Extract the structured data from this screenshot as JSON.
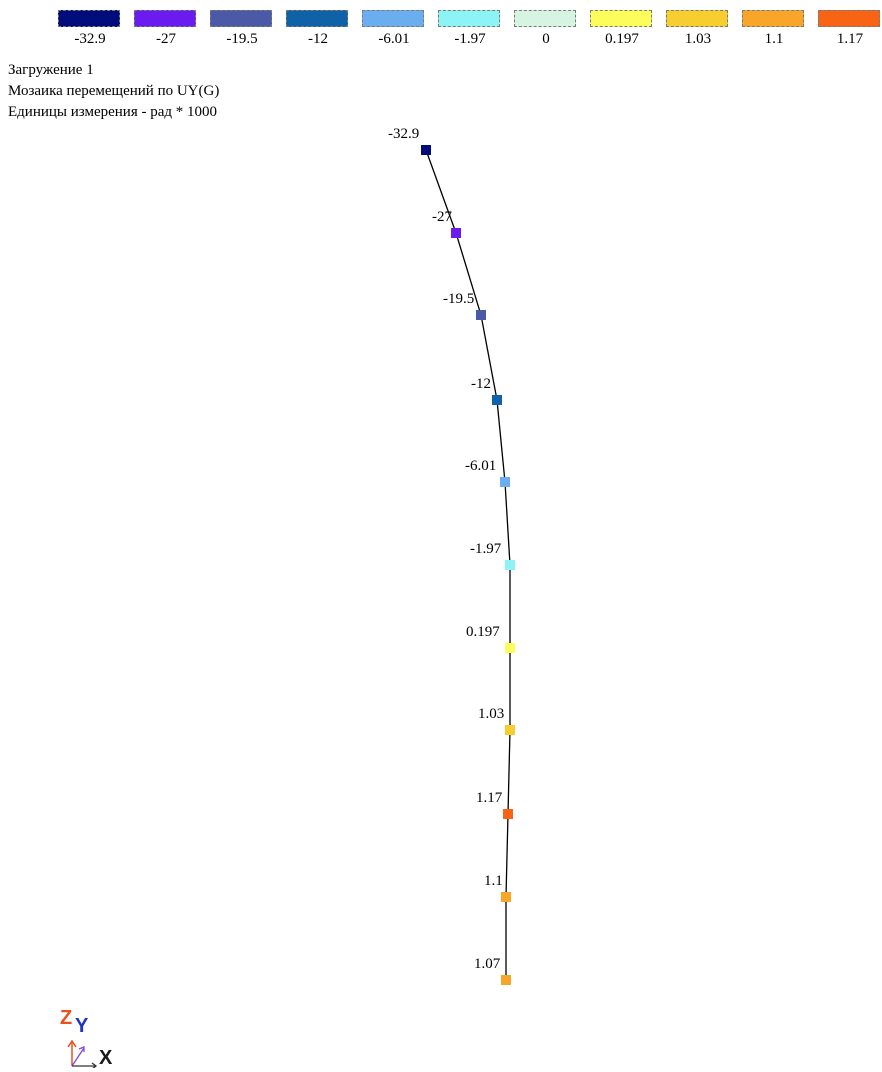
{
  "legend": [
    {
      "label": "-32.9",
      "color": "#000c7c"
    },
    {
      "label": "-27",
      "color": "#6a1cf0"
    },
    {
      "label": "-19.5",
      "color": "#4a5aa6"
    },
    {
      "label": "-12",
      "color": "#0f62a8"
    },
    {
      "label": "-6.01",
      "color": "#6aaef0"
    },
    {
      "label": "-1.97",
      "color": "#8cf4f4"
    },
    {
      "label": "0",
      "color": "#d6f4e2"
    },
    {
      "label": "0.197",
      "color": "#fcfc5a"
    },
    {
      "label": "1.03",
      "color": "#f8cd30"
    },
    {
      "label": "1.1",
      "color": "#f8a52a"
    },
    {
      "label": "1.17",
      "color": "#f86414"
    }
  ],
  "info": {
    "load": "Загружение 1",
    "mosaic": "Мозаика перемещений по UY(G)",
    "units": "Единицы измерения - рад * 1000"
  },
  "nodes": [
    {
      "label": "-32.9",
      "color": "#000c7c"
    },
    {
      "label": "-27",
      "color": "#6a1cf0"
    },
    {
      "label": "-19.5",
      "color": "#4a5aa6"
    },
    {
      "label": "-12",
      "color": "#0f62a8"
    },
    {
      "label": "-6.01",
      "color": "#6aaef0"
    },
    {
      "label": "-1.97",
      "color": "#8cf4f4"
    },
    {
      "label": "0.197",
      "color": "#fcfc5a"
    },
    {
      "label": "1.03",
      "color": "#f8cd30"
    },
    {
      "label": "1.17",
      "color": "#f86414"
    },
    {
      "label": "1.1",
      "color": "#f8a52a"
    },
    {
      "label": "1.07",
      "color": "#f8a52a"
    }
  ],
  "axes": {
    "z_label": "Z",
    "y_label": "Y",
    "x_label": "X",
    "z_color": "#e8521e",
    "y_color": "#1e34c8",
    "x_color": "#1a1a1a"
  }
}
